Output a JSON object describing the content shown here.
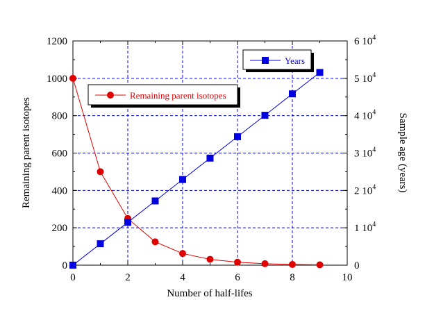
{
  "chart_data": {
    "type": "line",
    "xlabel": "Number of half-lifes",
    "ylabel_left": "Remaining parent isotopes",
    "ylabel_right": "Sample age (years)",
    "xlim": [
      0,
      10
    ],
    "ylim_left": [
      0,
      1200
    ],
    "ylim_right": [
      0,
      60000
    ],
    "x_ticks": [
      "0",
      "2",
      "4",
      "6",
      "8",
      "10"
    ],
    "y_ticks_left": [
      "0",
      "200",
      "400",
      "600",
      "800",
      "1000",
      "1200"
    ],
    "y_ticks_right": [
      {
        "base": "0",
        "exp": ""
      },
      {
        "base": "1 10",
        "exp": "4"
      },
      {
        "base": "2 10",
        "exp": "4"
      },
      {
        "base": "3 10",
        "exp": "4"
      },
      {
        "base": "4 10",
        "exp": "4"
      },
      {
        "base": "5 10",
        "exp": "4"
      },
      {
        "base": "6 10",
        "exp": "4"
      }
    ],
    "grid": true,
    "series": [
      {
        "name": "Remaining parent isotopes",
        "axis": "left",
        "color": "#e00000",
        "marker": "circle",
        "x": [
          0,
          1,
          2,
          3,
          4,
          5,
          6,
          7,
          8,
          9
        ],
        "y": [
          1000,
          500,
          250,
          125,
          62.5,
          31.25,
          15.6,
          7.8,
          3.9,
          1.95
        ]
      },
      {
        "name": "Years",
        "axis": "right",
        "color": "#0000e0",
        "marker": "square",
        "x": [
          0,
          1,
          2,
          3,
          4,
          5,
          6,
          7,
          8,
          9
        ],
        "y": [
          0,
          5730,
          11460,
          17190,
          22920,
          28650,
          34380,
          40110,
          45840,
          51570
        ]
      }
    ]
  }
}
